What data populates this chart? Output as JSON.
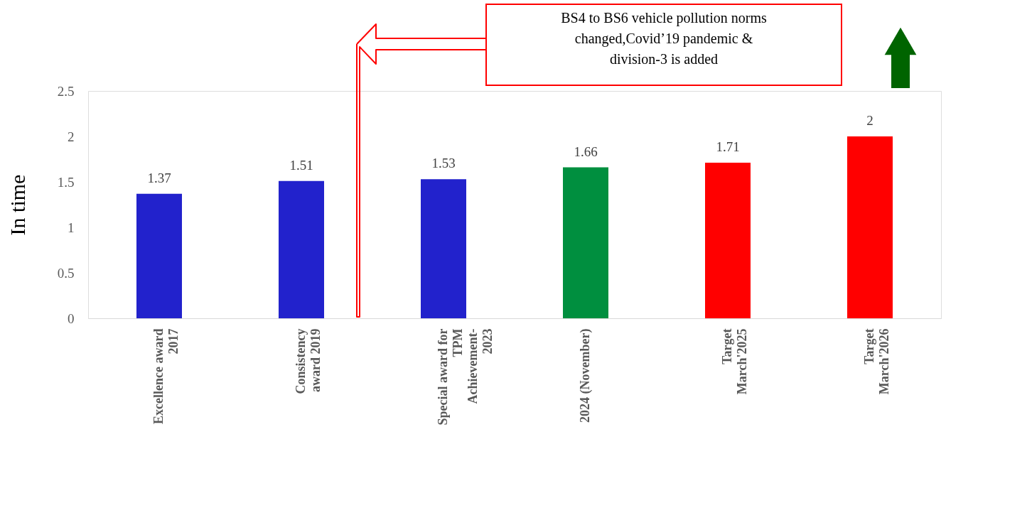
{
  "chart_data": {
    "type": "bar",
    "categories": [
      "Excellence award\n2017",
      "Consistency\naward 2019",
      "Special award for\nTPM\nAchievement-\n2023",
      "2024 (November)",
      "Target\nMarch'2025",
      "Target\nMarch'2026"
    ],
    "values": [
      1.37,
      1.51,
      1.53,
      1.66,
      1.71,
      2
    ],
    "colors": [
      "#2222cc",
      "#2222cc",
      "#2222cc",
      "#008f3f",
      "#ff0000",
      "#ff0000"
    ],
    "ylabel": "In time",
    "ylim": [
      0,
      2.5
    ],
    "yticks": [
      0,
      0.5,
      1,
      1.5,
      2,
      2.5
    ],
    "data_labels": true,
    "grid": false,
    "annotations": [
      "BS4 to BS6  vehicle pollution norms\nchanged,Covid’19 pandemic &\ndivision-3 is added"
    ]
  }
}
